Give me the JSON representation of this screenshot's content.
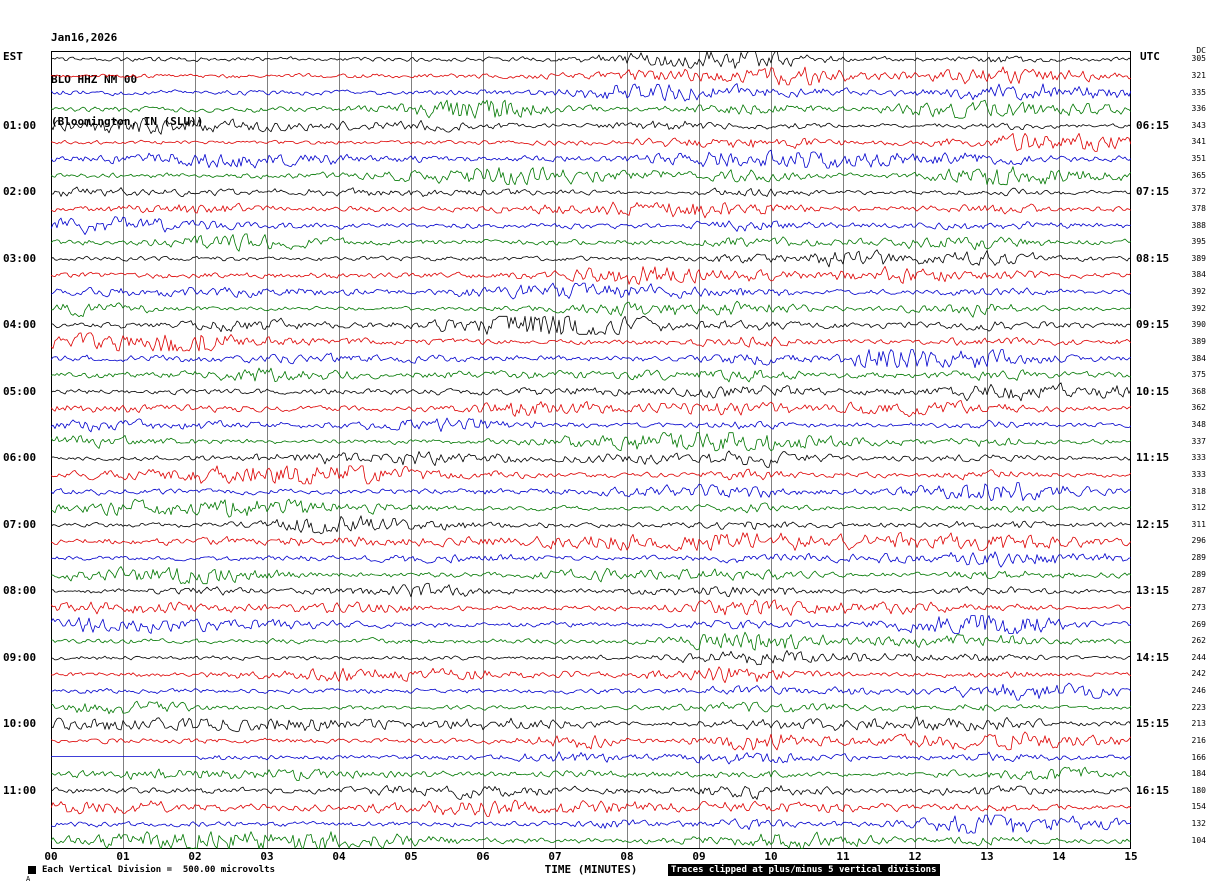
{
  "header": {
    "date": "Jan16,2026",
    "station": "BLO HHZ NM 00",
    "location": "(Bloomington, IN (SLU))"
  },
  "axes": {
    "left_label": "EST",
    "right_label": "UTC",
    "dc_label": "DC",
    "x_title": "TIME (MINUTES)"
  },
  "footer": {
    "division_text": "Each Vertical Division =  500.00 microvolts",
    "clip_text": "Traces clipped at plus/minus 5 vertical divisions",
    "corner_mark": "A"
  },
  "chart_data": {
    "type": "line",
    "title": "BLO HHZ NM 00 (Bloomington, IN (SLU)) webicorder seismogram",
    "x_axis": {
      "title": "TIME (MINUTES)",
      "ticks": [
        "00",
        "01",
        "02",
        "03",
        "04",
        "05",
        "06",
        "07",
        "08",
        "09",
        "10",
        "11",
        "12",
        "13",
        "14",
        "15"
      ],
      "minutes_per_row": 15,
      "range": [
        0,
        15
      ]
    },
    "trace_colors_cycle": [
      "#000000",
      "#dd0000",
      "#0000cc",
      "#007700"
    ],
    "clip_divisions": 5,
    "microvolts_per_division": 500.0,
    "rows": [
      {
        "est": "",
        "utc": "",
        "dc": 305
      },
      {
        "est": "",
        "utc": "",
        "dc": 321
      },
      {
        "est": "",
        "utc": "",
        "dc": 335
      },
      {
        "est": "",
        "utc": "",
        "dc": 336
      },
      {
        "est": "01:00",
        "utc": "06:15",
        "dc": 343
      },
      {
        "est": "",
        "utc": "",
        "dc": 341
      },
      {
        "est": "",
        "utc": "",
        "dc": 351
      },
      {
        "est": "",
        "utc": "",
        "dc": 365
      },
      {
        "est": "02:00",
        "utc": "07:15",
        "dc": 372
      },
      {
        "est": "",
        "utc": "",
        "dc": 378
      },
      {
        "est": "",
        "utc": "",
        "dc": 388
      },
      {
        "est": "",
        "utc": "",
        "dc": 395
      },
      {
        "est": "03:00",
        "utc": "08:15",
        "dc": 389
      },
      {
        "est": "",
        "utc": "",
        "dc": 384
      },
      {
        "est": "",
        "utc": "",
        "dc": 392
      },
      {
        "est": "",
        "utc": "",
        "dc": 392
      },
      {
        "est": "04:00",
        "utc": "09:15",
        "dc": 390
      },
      {
        "est": "",
        "utc": "",
        "dc": 389
      },
      {
        "est": "",
        "utc": "",
        "dc": 384
      },
      {
        "est": "",
        "utc": "",
        "dc": 375
      },
      {
        "est": "05:00",
        "utc": "10:15",
        "dc": 368
      },
      {
        "est": "",
        "utc": "",
        "dc": 362
      },
      {
        "est": "",
        "utc": "",
        "dc": 348
      },
      {
        "est": "",
        "utc": "",
        "dc": 337
      },
      {
        "est": "06:00",
        "utc": "11:15",
        "dc": 333
      },
      {
        "est": "",
        "utc": "",
        "dc": 333
      },
      {
        "est": "",
        "utc": "",
        "dc": 318
      },
      {
        "est": "",
        "utc": "",
        "dc": 312
      },
      {
        "est": "07:00",
        "utc": "12:15",
        "dc": 311
      },
      {
        "est": "",
        "utc": "",
        "dc": 296
      },
      {
        "est": "",
        "utc": "",
        "dc": 289
      },
      {
        "est": "",
        "utc": "",
        "dc": 289
      },
      {
        "est": "08:00",
        "utc": "13:15",
        "dc": 287
      },
      {
        "est": "",
        "utc": "",
        "dc": 273
      },
      {
        "est": "",
        "utc": "",
        "dc": 269
      },
      {
        "est": "",
        "utc": "",
        "dc": 262
      },
      {
        "est": "09:00",
        "utc": "14:15",
        "dc": 244
      },
      {
        "est": "",
        "utc": "",
        "dc": 242
      },
      {
        "est": "",
        "utc": "",
        "dc": 246
      },
      {
        "est": "",
        "utc": "",
        "dc": 223
      },
      {
        "est": "10:00",
        "utc": "15:15",
        "dc": 213
      },
      {
        "est": "",
        "utc": "",
        "dc": 216
      },
      {
        "est": "",
        "utc": "",
        "dc": 166,
        "flat_until_minute": 2.05
      },
      {
        "est": "",
        "utc": "",
        "dc": 184
      },
      {
        "est": "11:00",
        "utc": "16:15",
        "dc": 180
      },
      {
        "est": "",
        "utc": "",
        "dc": 154
      },
      {
        "est": "",
        "utc": "",
        "dc": 132
      },
      {
        "est": "",
        "utc": "",
        "dc": 104
      }
    ]
  }
}
